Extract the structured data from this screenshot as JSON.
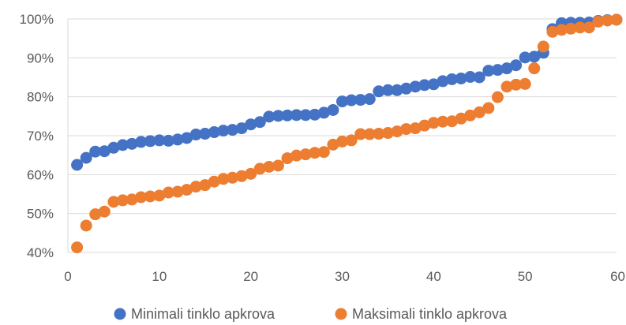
{
  "chart_data": {
    "type": "scatter",
    "title": "",
    "xlabel": "",
    "ylabel": "",
    "xlim": [
      0,
      60
    ],
    "ylim": [
      40,
      100
    ],
    "x_ticks": [
      "0",
      "10",
      "20",
      "30",
      "40",
      "50",
      "60"
    ],
    "y_ticks": [
      "40%",
      "50%",
      "60%",
      "70%",
      "80%",
      "90%",
      "100%"
    ],
    "grid": "horizontal",
    "legend_position": "bottom",
    "series": [
      {
        "name": "Minimali tinklo apkrova",
        "color": "#4472C4",
        "x": [
          1,
          2,
          3,
          4,
          5,
          6,
          7,
          8,
          9,
          10,
          11,
          12,
          13,
          14,
          15,
          16,
          17,
          18,
          19,
          20,
          21,
          22,
          23,
          24,
          25,
          26,
          27,
          28,
          29,
          30,
          31,
          32,
          33,
          34,
          35,
          36,
          37,
          38,
          39,
          40,
          41,
          42,
          43,
          44,
          45,
          46,
          47,
          48,
          49,
          50,
          51,
          52,
          53,
          54,
          55,
          56,
          57,
          58,
          59,
          60
        ],
        "values": [
          62.5,
          64.3,
          65.9,
          66.0,
          66.9,
          67.6,
          67.9,
          68.4,
          68.6,
          68.8,
          68.7,
          69.0,
          69.4,
          70.3,
          70.5,
          70.9,
          71.3,
          71.5,
          71.9,
          72.9,
          73.5,
          74.9,
          75.1,
          75.2,
          75.3,
          75.3,
          75.4,
          75.9,
          76.6,
          78.8,
          79.1,
          79.2,
          79.4,
          81.4,
          81.7,
          81.7,
          82.1,
          82.6,
          83.0,
          83.2,
          84.0,
          84.5,
          84.7,
          85.1,
          85.0,
          86.7,
          86.9,
          87.3,
          88.1,
          90.1,
          90.3,
          91.3,
          97.4,
          98.9,
          99.0,
          99.0,
          99.1,
          99.5,
          99.7,
          99.8
        ]
      },
      {
        "name": "Maksimali tinklo apkrova",
        "color": "#ED7D31",
        "x": [
          1,
          2,
          3,
          4,
          5,
          6,
          7,
          8,
          9,
          10,
          11,
          12,
          13,
          14,
          15,
          16,
          17,
          18,
          19,
          20,
          21,
          22,
          23,
          24,
          25,
          26,
          27,
          28,
          29,
          30,
          31,
          32,
          33,
          34,
          35,
          36,
          37,
          38,
          39,
          40,
          41,
          42,
          43,
          44,
          45,
          46,
          47,
          48,
          49,
          50,
          51,
          52,
          53,
          54,
          55,
          56,
          57,
          58,
          59,
          60
        ],
        "values": [
          41.3,
          46.9,
          49.8,
          50.5,
          53.0,
          53.4,
          53.6,
          54.2,
          54.4,
          54.6,
          55.4,
          55.6,
          56.1,
          56.9,
          57.3,
          58.2,
          58.9,
          59.2,
          59.6,
          60.2,
          61.5,
          62.0,
          62.3,
          64.2,
          64.9,
          65.2,
          65.6,
          65.8,
          67.7,
          68.5,
          68.8,
          70.4,
          70.4,
          70.5,
          70.7,
          71.1,
          71.7,
          71.9,
          72.6,
          73.3,
          73.6,
          73.7,
          74.4,
          75.2,
          76.0,
          77.1,
          79.9,
          82.6,
          83.1,
          83.3,
          87.3,
          92.9,
          96.7,
          97.2,
          97.5,
          97.8,
          97.8,
          99.3,
          99.6,
          99.8
        ]
      }
    ]
  }
}
